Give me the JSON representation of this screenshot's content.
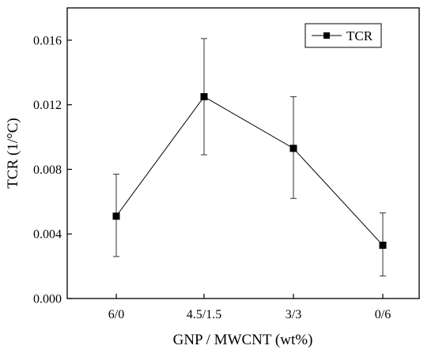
{
  "chart_data": {
    "type": "line",
    "title": "",
    "xlabel": "GNP / MWCNT (wt%)",
    "ylabel": "TCR (1/°C)",
    "categories": [
      "6/0",
      "4.5/1.5",
      "3/3",
      "0/6"
    ],
    "ylim": [
      0.0,
      0.018
    ],
    "yticks": [
      0.0,
      0.004,
      0.008,
      0.012,
      0.016
    ],
    "ytick_labels": [
      "0.000",
      "0.004",
      "0.008",
      "0.012",
      "0.016"
    ],
    "grid": false,
    "legend_position": "top-right",
    "series": [
      {
        "name": "TCR",
        "color": "#000000",
        "marker": "square",
        "values": [
          0.0051,
          0.0125,
          0.0093,
          0.0033
        ],
        "error_low": [
          0.0026,
          0.0089,
          0.0062,
          0.0014
        ],
        "error_high": [
          0.0077,
          0.0161,
          0.0125,
          0.0053
        ]
      }
    ]
  }
}
